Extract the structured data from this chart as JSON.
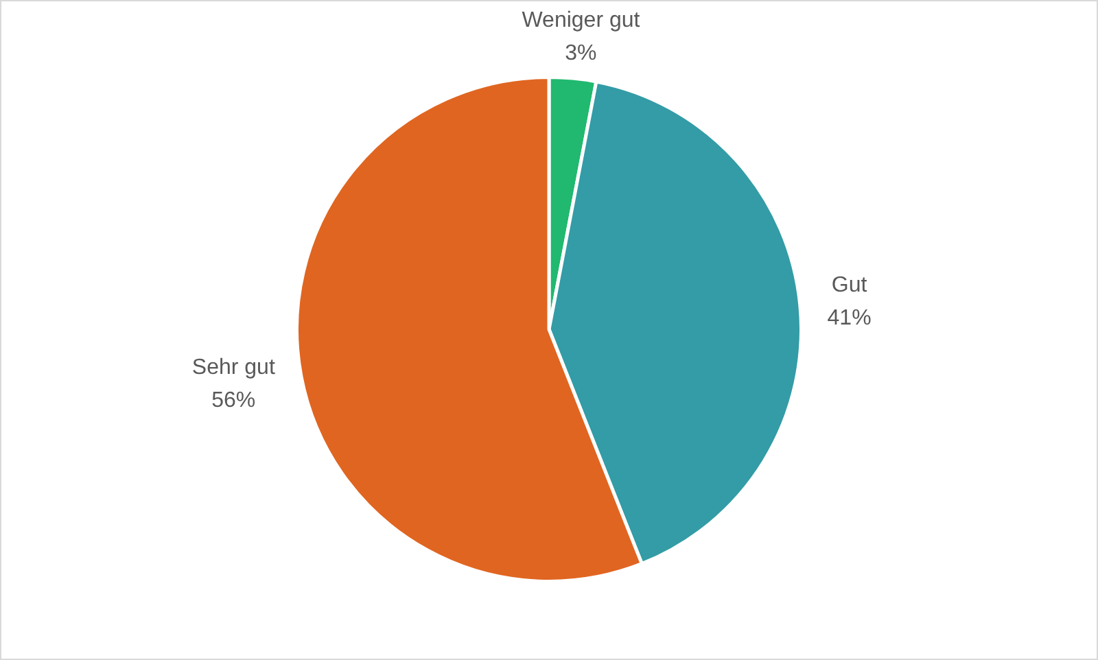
{
  "chart_data": {
    "type": "pie",
    "categories": [
      "Weniger gut",
      "Gut",
      "Sehr gut"
    ],
    "values": [
      3,
      41,
      56
    ],
    "colors": [
      "#20b96f",
      "#339ca6",
      "#e06521"
    ],
    "value_labels": [
      "3%",
      "41%",
      "56%"
    ],
    "legend": false
  }
}
